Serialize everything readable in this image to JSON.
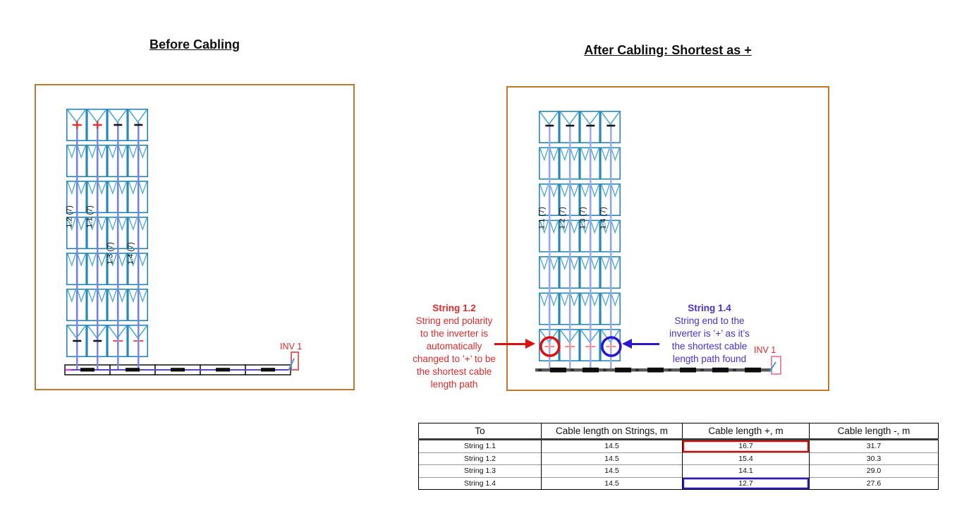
{
  "titles": {
    "left": "Before Cabling",
    "right": "After Cabling: Shortest as +"
  },
  "left_diagram": {
    "inverter_label": "INV 1",
    "strings": [
      {
        "label": "1.2 (7)",
        "top_mark": "plus_red",
        "bottom_mark": "minus_black",
        "label_pos": "upper"
      },
      {
        "label": "1.1 (7)",
        "top_mark": "plus_red",
        "bottom_mark": "minus_black",
        "label_pos": "upper"
      },
      {
        "label": "1.3 (7)",
        "top_mark": "minus_black",
        "bottom_mark": "minus_lightred",
        "label_pos": "lower"
      },
      {
        "label": "1.4 (7)",
        "top_mark": "minus_black",
        "bottom_mark": "minus_lightred",
        "label_pos": "lower"
      }
    ]
  },
  "right_diagram": {
    "inverter_label": "INV 1",
    "strings": [
      {
        "label": "1.1 (7)",
        "top_mark": "minus_black",
        "bottom_mark": "plus_lightred",
        "label_pos": "upper"
      },
      {
        "label": "1.2 (7)",
        "top_mark": "minus_black",
        "bottom_mark": "plus_lightred",
        "label_pos": "upper"
      },
      {
        "label": "1.3 (7)",
        "top_mark": "minus_black",
        "bottom_mark": "plus_lightred",
        "label_pos": "upper"
      },
      {
        "label": "1.4 (7)",
        "top_mark": "minus_black",
        "bottom_mark": "plus_lightred",
        "label_pos": "upper"
      }
    ],
    "circles": [
      {
        "string_index": 0,
        "color": "#DD1111"
      },
      {
        "string_index": 3,
        "color": "#2B17CE"
      }
    ]
  },
  "annotations": {
    "red": {
      "title": "String 1.2",
      "lines": [
        "String end polarity",
        "to the inverter is",
        "automatically",
        "changed to ’+’ to be",
        "the shortest cable",
        "length path"
      ],
      "color": "#E02B2B"
    },
    "blue": {
      "title": "String 1.4",
      "lines": [
        "String end to the",
        "inverter is ’+’ as it’s",
        "the shortest cable",
        "length path found"
      ],
      "color": "#4B2FD6"
    }
  },
  "table": {
    "headers": [
      "To",
      "Cable length on Strings, m",
      "Cable length +, m",
      "Cable length -, m"
    ],
    "rows": [
      {
        "cells": [
          "String 1.1",
          "14.5",
          "16.7",
          "31.7"
        ],
        "highlight_col": 2,
        "highlight_color": "#CC1111"
      },
      {
        "cells": [
          "String 1.2",
          "14.5",
          "15.4",
          "30.3"
        ]
      },
      {
        "cells": [
          "String 1.3",
          "14.5",
          "14.1",
          "29.0"
        ]
      },
      {
        "cells": [
          "String 1.4",
          "14.5",
          "12.7",
          "27.6"
        ],
        "highlight_col": 2,
        "highlight_color": "#2B17CE"
      }
    ]
  },
  "colors": {
    "diagram_border": "#C4762B",
    "module_frame": "#2688B9",
    "module_chevron": "#4BA8CF",
    "string_line_before": "#7381E8",
    "string_line_after": "#98A8F2",
    "trench_purple": "#5A3FE8",
    "trench_magenta": "#D944D9",
    "trench_dark": "#585858",
    "dash_black": "#0d0d0d",
    "inverter_red_left": "#E05050",
    "inverter_red_right": "#F27A95",
    "inv_label_red": "#E3282B",
    "mark_red": "#E23333",
    "mark_black": "#141414",
    "mark_lightred": "#ED8F91",
    "arrow_red": "#DD1111",
    "arrow_blue": "#2B17CE"
  }
}
